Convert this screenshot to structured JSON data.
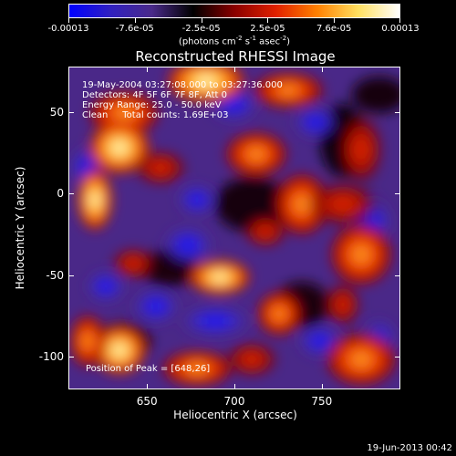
{
  "colorbar": {
    "tick_labels": [
      "-0.00013",
      "-7.6e-05",
      "-2.5e-05",
      "2.5e-05",
      "7.6e-05",
      "0.00013"
    ],
    "units_prefix": "(photons cm",
    "units_sup1": "-2",
    "units_mid1": " s",
    "units_sup2": "-1",
    "units_mid2": " asec",
    "units_sup3": "-2",
    "units_suffix": ")"
  },
  "plot": {
    "title": "Reconstructed RHESSI Image",
    "info_lines": [
      "19-May-2004 03:27:08.000 to 03:27:36.000",
      "Detectors: 4F 5F 6F 7F 8F, Att 0",
      "Energy Range: 25.0 - 50.0 keV",
      "Clean     Total counts: 1.69E+03"
    ],
    "peak_label": "Position of Peak = [648,26]",
    "xlabel": "Heliocentric X (arcsec)",
    "ylabel": "Heliocentric Y (arcsec)",
    "xticks": [
      "650",
      "700",
      "750"
    ],
    "yticks": [
      "50",
      "0",
      "-50",
      "-100"
    ],
    "xlim": [
      605,
      795
    ],
    "ylim": [
      -120,
      78
    ]
  },
  "timestamp": "19-Jun-2013 00:42",
  "colors": {
    "background": "#000000",
    "text": "#ffffff",
    "colormap": [
      "#0000ff",
      "#3020c0",
      "#4a2a8a",
      "#000000",
      "#8a0000",
      "#e02000",
      "#ff8000",
      "#ffe060",
      "#ffffff"
    ]
  }
}
